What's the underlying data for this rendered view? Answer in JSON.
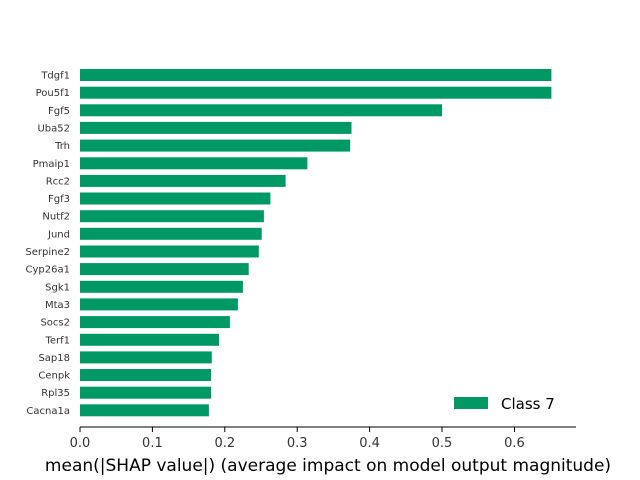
{
  "chart_data": {
    "type": "bar",
    "orientation": "horizontal",
    "title": "",
    "xlabel": "mean(|SHAP value|) (average impact on model output magnitude)",
    "ylabel": "",
    "xlim": [
      0,
      0.685
    ],
    "x_ticks": [
      "0.0",
      "0.1",
      "0.2",
      "0.3",
      "0.4",
      "0.5",
      "0.6"
    ],
    "x_tick_values": [
      0.0,
      0.1,
      0.2,
      0.3,
      0.4,
      0.5,
      0.6
    ],
    "grid": false,
    "legend_position": "bottom-right",
    "series": [
      {
        "name": "Class 7",
        "color": "#009966",
        "categories": [
          "Tdgf1",
          "Pou5f1",
          "Fgf5",
          "Uba52",
          "Trh",
          "Pmaip1",
          "Rcc2",
          "Fgf3",
          "Nutf2",
          "Jund",
          "Serpine2",
          "Cyp26a1",
          "Sgk1",
          "Mta3",
          "Socs2",
          "Terf1",
          "Sap18",
          "Cenpk",
          "Rpl35",
          "Cacna1a"
        ],
        "values": [
          0.651,
          0.651,
          0.5,
          0.375,
          0.373,
          0.314,
          0.284,
          0.263,
          0.254,
          0.251,
          0.247,
          0.233,
          0.225,
          0.218,
          0.207,
          0.192,
          0.182,
          0.181,
          0.181,
          0.178
        ]
      }
    ]
  }
}
